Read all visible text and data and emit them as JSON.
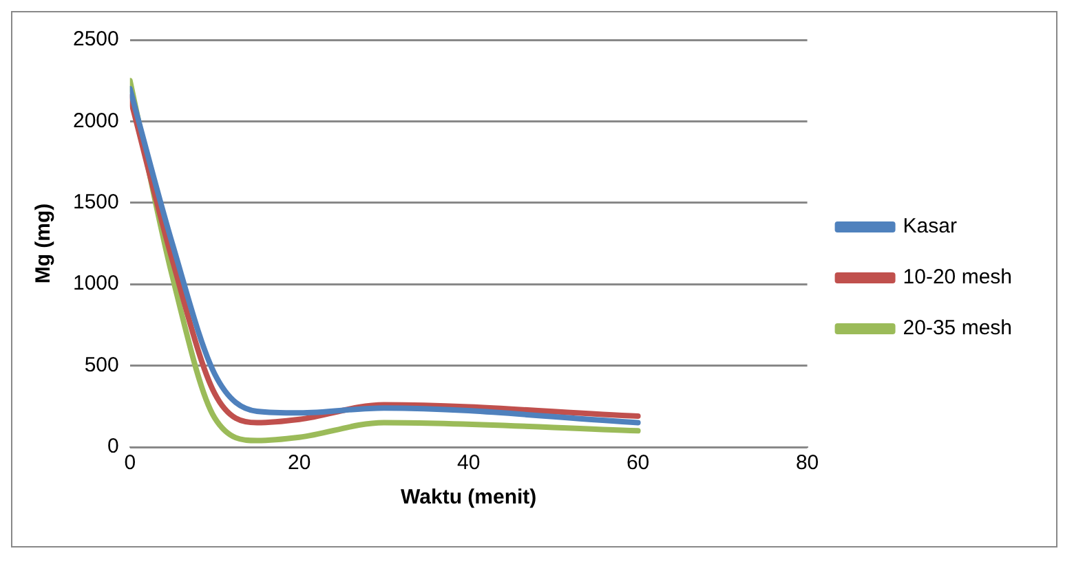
{
  "chart_data": {
    "type": "line",
    "xlabel": "Waktu (menit)",
    "ylabel": "Mg (mg)",
    "x": [
      0,
      5,
      10,
      15,
      20,
      30,
      60
    ],
    "series": [
      {
        "name": "Kasar",
        "color": "#4f81bd",
        "values": [
          2200,
          1250,
          450,
          220,
          210,
          240,
          150
        ]
      },
      {
        "name": "10-20 mesh",
        "color": "#c0504d",
        "values": [
          2150,
          1150,
          330,
          150,
          170,
          260,
          190
        ]
      },
      {
        "name": "20-35 mesh",
        "color": "#9bbb59",
        "values": [
          2250,
          1050,
          180,
          40,
          60,
          150,
          100
        ]
      }
    ],
    "xlim": [
      0,
      80
    ],
    "xticks": [
      0,
      20,
      40,
      60,
      80
    ],
    "ylim": [
      0,
      2500
    ],
    "yticks": [
      0,
      500,
      1000,
      1500,
      2000,
      2500
    ],
    "grid": "y",
    "legend": "right",
    "marker": "none"
  }
}
